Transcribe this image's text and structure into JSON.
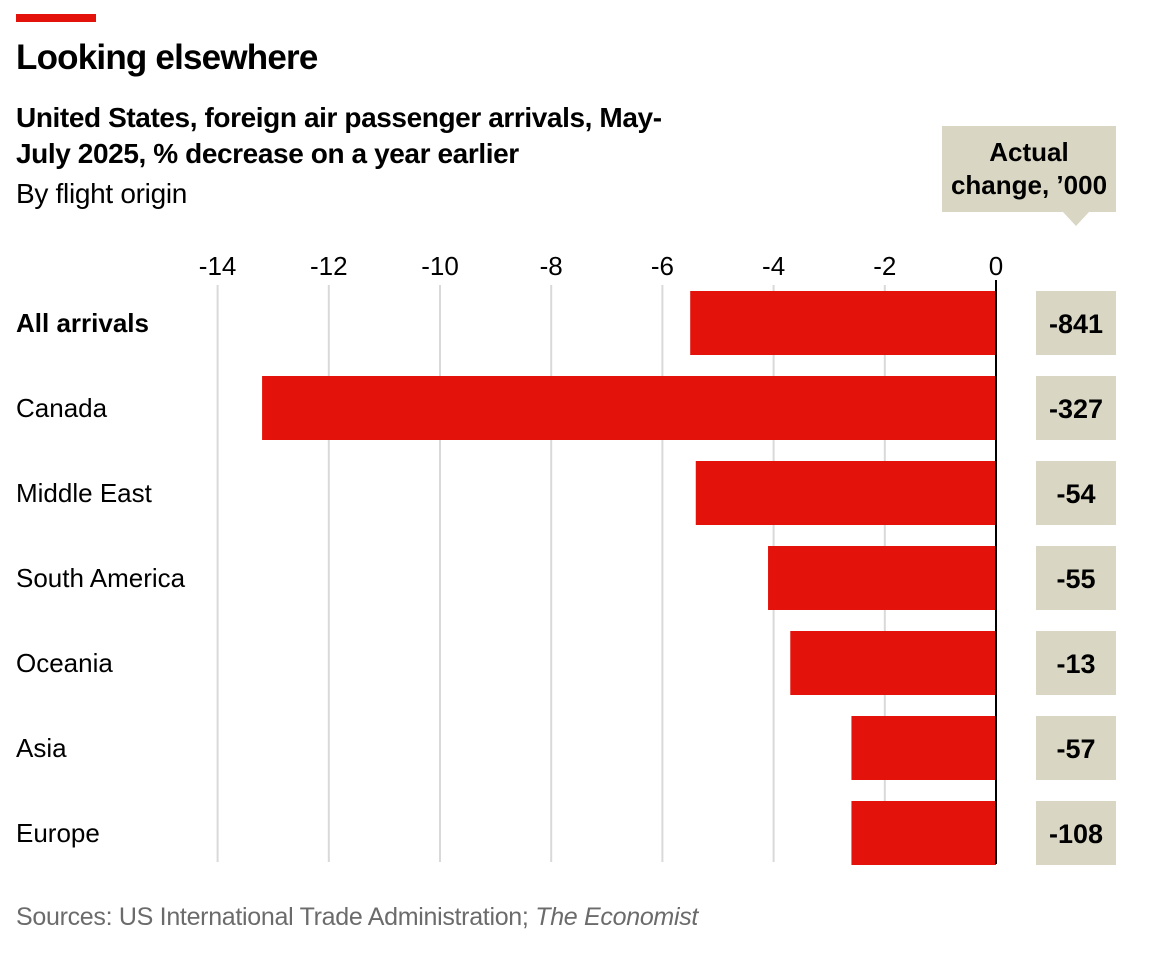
{
  "header": {
    "title": "Looking elsewhere",
    "subtitle": "United States, foreign air passenger arrivals, May-July 2025, % decrease on a year earlier",
    "subnote": "By flight origin"
  },
  "footer": {
    "source_prefix": "Sources: US International Trade Administration; ",
    "source_italic": "The Economist"
  },
  "colors": {
    "bar": "#e3120b",
    "box": "#d9d6c3",
    "grid": "#d9d9d9",
    "source": "#6b6b6b"
  },
  "chart_data": {
    "type": "bar",
    "orientation": "horizontal",
    "title": "Looking elsewhere",
    "subtitle": "United States, foreign air passenger arrivals, May-July 2025, % decrease on a year earlier",
    "xlim": [
      -14,
      0
    ],
    "xticks": [
      -14,
      -12,
      -10,
      -8,
      -6,
      -4,
      -2,
      0
    ],
    "grid": true,
    "categories": [
      "All arrivals",
      "Canada",
      "Middle East",
      "South America",
      "Oceania",
      "Asia",
      "Europe"
    ],
    "values": [
      -5.5,
      -13.2,
      -5.4,
      -4.1,
      -3.7,
      -2.6,
      -2.6
    ],
    "side_column": {
      "header": [
        "Actual",
        "change, ’000"
      ],
      "values": [
        "-841",
        "-327",
        "-54",
        "-55",
        "-13",
        "-57",
        "-108"
      ]
    }
  }
}
